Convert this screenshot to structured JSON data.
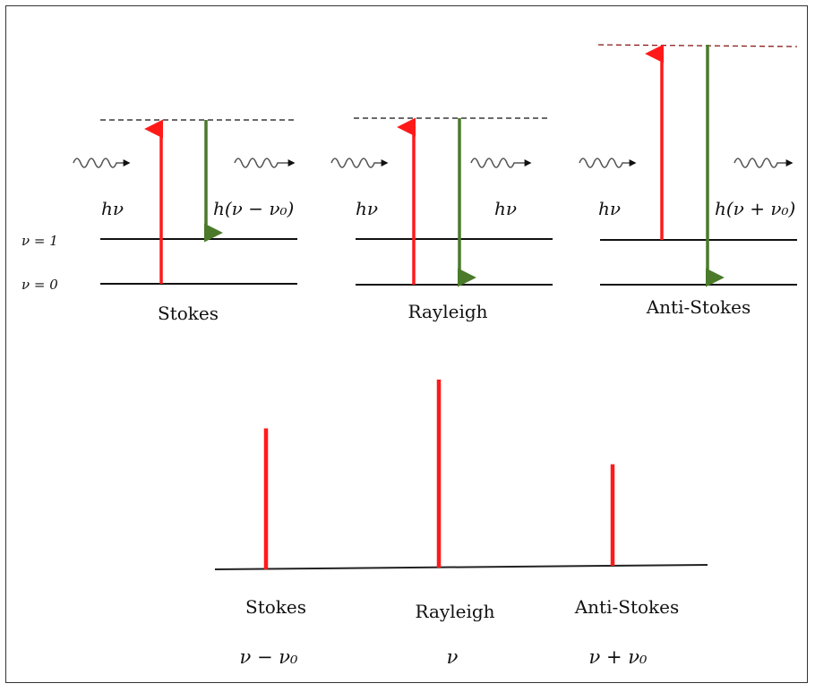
{
  "levels": {
    "upper": "ν = 1",
    "lower": "ν = 0"
  },
  "processes": [
    {
      "name": "Stokes",
      "incident": "hν",
      "scattered": "h(ν − ν₀)"
    },
    {
      "name": "Rayleigh",
      "incident": "hν",
      "scattered": "hν"
    },
    {
      "name": "Anti-Stokes",
      "incident": "hν",
      "scattered": "h(ν + ν₀)"
    }
  ],
  "spectrum": {
    "lines": [
      {
        "name": "Stokes",
        "freq": "ν − ν₀",
        "relative_intensity": 0.75
      },
      {
        "name": "Rayleigh",
        "freq": "ν",
        "relative_intensity": 1.0
      },
      {
        "name": "Anti-Stokes",
        "freq": "ν + ν₀",
        "relative_intensity": 0.54
      }
    ]
  },
  "colors": {
    "excitation": "#ff1a1a",
    "emission": "#4a7a2a",
    "line": "#111111",
    "spectrum": "#ff1a1a"
  }
}
